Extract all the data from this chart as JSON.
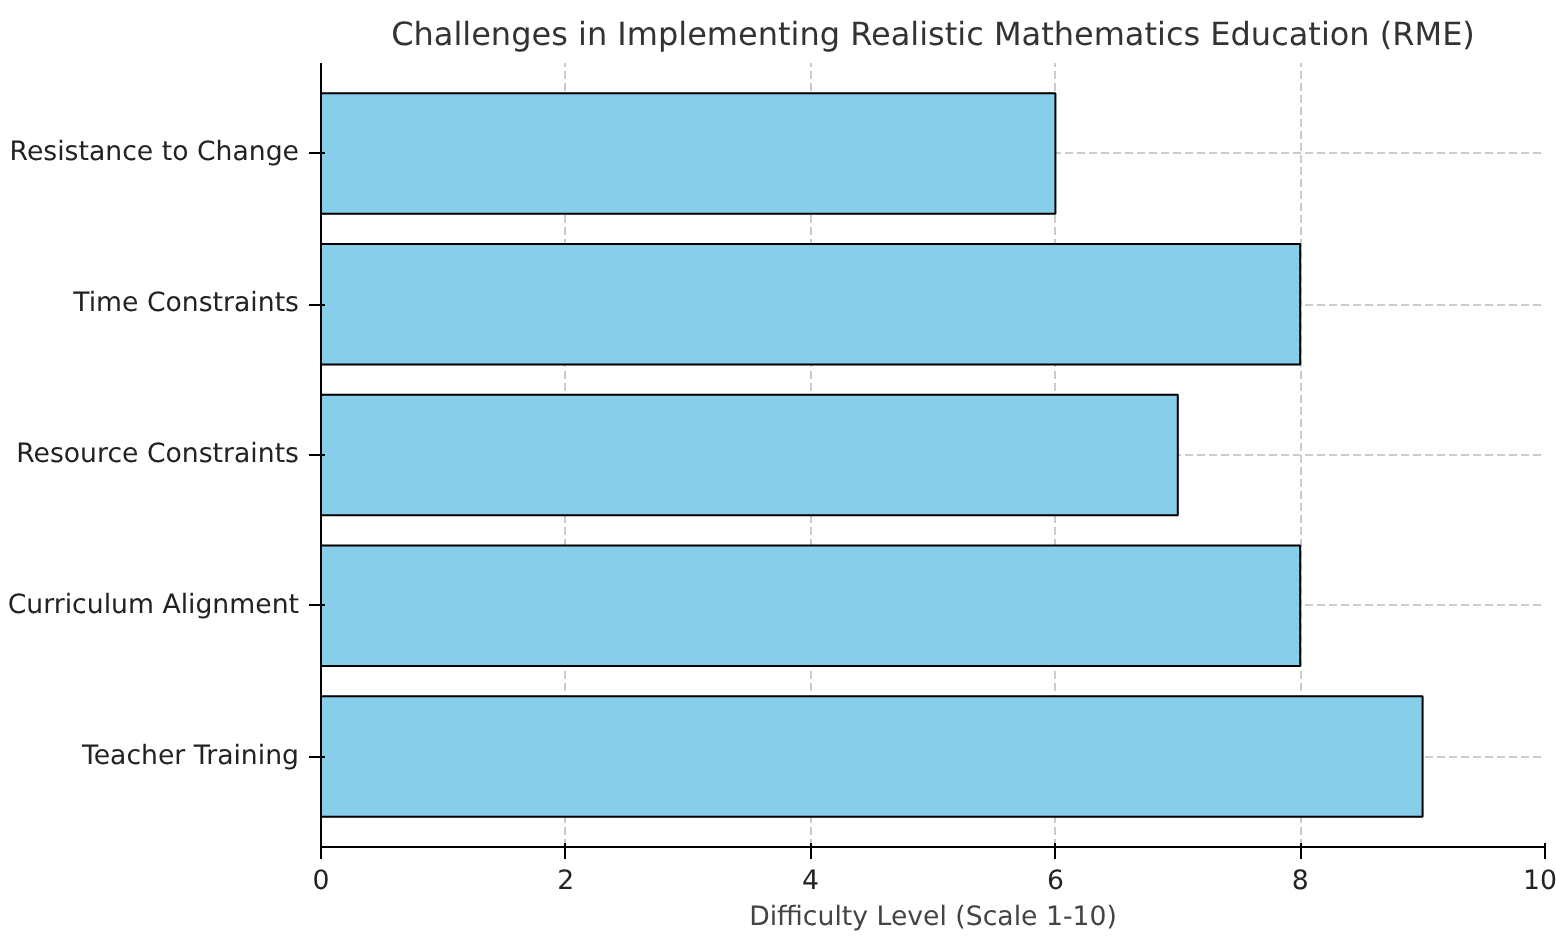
{
  "chart_data": {
    "type": "bar",
    "orientation": "horizontal",
    "title": "Challenges in Implementing Realistic Mathematics Education (RME)",
    "xlabel": "Difficulty Level (Scale 1-10)",
    "categories": [
      "Resistance to Change",
      "Time Constraints",
      "Resource Constraints",
      "Curriculum Alignment",
      "Teacher Training"
    ],
    "values": [
      6,
      8,
      7,
      8,
      9
    ],
    "color": "#87ceeb",
    "xlim": [
      0,
      10
    ],
    "xticks": [
      0,
      2,
      4,
      6,
      8,
      10
    ],
    "grid": true
  }
}
